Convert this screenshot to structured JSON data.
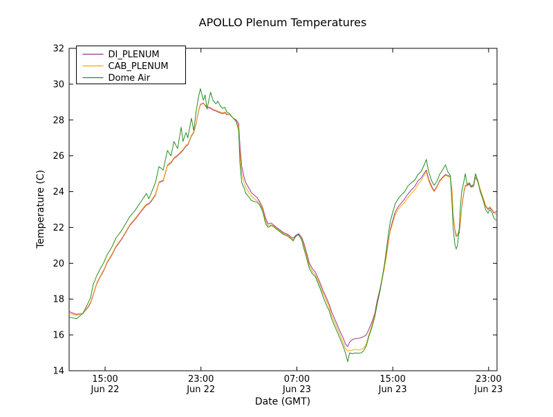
{
  "title": "APOLLO Plenum Temperatures",
  "chart_data": {
    "type": "line",
    "title": "APOLLO Plenum Temperatures",
    "xlabel": "Date (GMT)",
    "ylabel": "Temperature (C)",
    "x_unit": "hours_since_Jun22_12:00_GMT",
    "xlim": [
      0,
      35.7
    ],
    "ylim": [
      14,
      32
    ],
    "grid": false,
    "legend_position": "upper-left",
    "yticks": [
      14,
      16,
      18,
      20,
      22,
      24,
      26,
      28,
      30,
      32
    ],
    "xticks": [
      {
        "hours": 3,
        "time": "15:00",
        "date": "Jun 22"
      },
      {
        "hours": 11,
        "time": "23:00",
        "date": "Jun 22"
      },
      {
        "hours": 19,
        "time": "07:00",
        "date": "Jun 23"
      },
      {
        "hours": 27,
        "time": "15:00",
        "date": "Jun 23"
      },
      {
        "hours": 35,
        "time": "23:00",
        "date": "Jun 23"
      }
    ],
    "x": [
      0,
      0.6,
      1.15,
      1.6,
      1.8,
      2,
      2.3,
      2.6,
      2.9,
      3.15,
      3.6,
      3.9,
      4.35,
      4.75,
      5.05,
      5.5,
      5.9,
      6.25,
      6.45,
      6.65,
      6.9,
      7.2,
      7.5,
      7.85,
      8.2,
      8.5,
      8.75,
      9.05,
      9.35,
      9.5,
      9.75,
      9.9,
      10.2,
      10.4,
      10.6,
      10.8,
      10.95,
      11.2,
      11.35,
      11.5,
      11.8,
      12,
      12.25,
      12.4,
      12.6,
      12.8,
      13,
      13.15,
      13.4,
      13.55,
      13.7,
      13.95,
      14.15,
      14.25,
      14.4,
      14.6,
      14.75,
      15,
      15.2,
      15.45,
      15.7,
      15.9,
      16.15,
      16.4,
      16.6,
      16.85,
      17.05,
      17.3,
      17.6,
      17.9,
      18.15,
      18.45,
      18.7,
      18.9,
      19.15,
      19.4,
      19.6,
      19.85,
      20.05,
      20.3,
      20.55,
      20.75,
      21,
      21.2,
      21.45,
      21.7,
      21.9,
      22.15,
      22.35,
      22.6,
      22.85,
      23.05,
      23.25,
      23.4,
      23.65,
      23.9,
      24.1,
      24.35,
      24.55,
      24.8,
      25,
      25.25,
      25.5,
      25.7,
      25.95,
      26.1,
      26.3,
      26.5,
      26.65,
      26.8,
      27,
      27.2,
      27.45,
      27.7,
      28,
      28.25,
      28.55,
      28.85,
      29.1,
      29.35,
      29.6,
      29.8,
      30,
      30.25,
      30.45,
      30.7,
      30.9,
      31.15,
      31.4,
      31.6,
      31.8,
      31.95,
      32.05,
      32.2,
      32.3,
      32.4,
      32.55,
      32.65,
      32.75,
      32.95,
      33.05,
      33.2,
      33.4,
      33.55,
      33.75,
      33.9,
      34.1,
      34.3,
      34.55,
      34.75,
      34.95,
      35.1,
      35.3,
      35.45,
      35.65
    ],
    "series": [
      {
        "name": "DI_PLENUM",
        "color": "#993399",
        "values": [
          17.3,
          17.15,
          17.2,
          17.55,
          17.8,
          18.2,
          18.85,
          19.25,
          19.6,
          20,
          20.5,
          20.9,
          21.3,
          21.75,
          22.1,
          22.45,
          22.8,
          23.1,
          23.25,
          23.3,
          23.5,
          23.8,
          24.5,
          24.6,
          25.45,
          25.6,
          25.85,
          26,
          26.2,
          26.3,
          26.55,
          26.6,
          27.1,
          27.3,
          27.8,
          28.5,
          28.85,
          28.95,
          28.8,
          28.7,
          28.65,
          28.55,
          28.5,
          28.45,
          28.4,
          28.35,
          28.4,
          28.3,
          28.3,
          28.2,
          28.1,
          28,
          27.8,
          26.6,
          25.4,
          24.8,
          24.5,
          24.2,
          23.95,
          23.8,
          23.65,
          23.45,
          23.1,
          22.5,
          22.2,
          22.25,
          22.15,
          22,
          21.85,
          21.7,
          21.65,
          21.5,
          21.4,
          21.55,
          21.65,
          21.45,
          21.1,
          20.5,
          20,
          19.7,
          19.5,
          19.2,
          18.8,
          18.45,
          18.1,
          17.7,
          17.3,
          16.9,
          16.6,
          16.2,
          15.85,
          15.5,
          15.35,
          15.6,
          15.75,
          15.8,
          15.8,
          15.85,
          15.9,
          16,
          16.3,
          16.7,
          17.2,
          17.9,
          18.6,
          19.1,
          19.8,
          20.6,
          21.3,
          21.9,
          22.4,
          22.85,
          23.15,
          23.35,
          23.6,
          23.85,
          24.1,
          24.3,
          24.6,
          24.75,
          25,
          25.2,
          24.7,
          24.3,
          24.05,
          24.3,
          24.6,
          24.8,
          24.95,
          24.9,
          24.85,
          24,
          22.6,
          21.8,
          21.5,
          21.55,
          21.7,
          22.3,
          23.1,
          24,
          24.3,
          24.35,
          24.4,
          24.25,
          24.3,
          24.8,
          24.55,
          24.1,
          23.6,
          23.2,
          23,
          23.1,
          22.95,
          22.8,
          22.9
        ]
      },
      {
        "name": "CAB_PLENUM",
        "color": "#ffa500",
        "values": [
          17.2,
          17.1,
          17.2,
          17.6,
          17.85,
          18.25,
          18.9,
          19.3,
          19.65,
          20.05,
          20.55,
          20.95,
          21.35,
          21.8,
          22.15,
          22.5,
          22.85,
          23.15,
          23.3,
          23.35,
          23.55,
          23.85,
          24.55,
          24.65,
          25.5,
          25.65,
          25.9,
          26.05,
          26.25,
          26.35,
          26.6,
          26.65,
          27.15,
          27.35,
          27.85,
          28.55,
          28.9,
          28.9,
          28.85,
          28.75,
          28.7,
          28.6,
          28.55,
          28.5,
          28.45,
          28.4,
          28.45,
          28.35,
          28.3,
          28.2,
          28.1,
          27.95,
          27.6,
          26.2,
          25,
          24.5,
          24.2,
          23.95,
          23.75,
          23.6,
          23.5,
          23.35,
          23,
          22.35,
          22.1,
          22.15,
          22.1,
          21.95,
          21.8,
          21.65,
          21.6,
          21.45,
          21.3,
          21.5,
          21.6,
          21.35,
          20.95,
          20.35,
          19.85,
          19.55,
          19.35,
          19.05,
          18.65,
          18.3,
          17.95,
          17.55,
          17.1,
          16.7,
          16.4,
          16,
          15.6,
          15.25,
          15.1,
          15.15,
          15.15,
          15.2,
          15.15,
          15.2,
          15.25,
          15.5,
          16,
          16.5,
          17.1,
          17.75,
          18.5,
          19,
          19.7,
          20.5,
          21.2,
          21.8,
          22.25,
          22.7,
          23,
          23.2,
          23.4,
          23.65,
          23.9,
          24.1,
          24.4,
          24.6,
          24.9,
          25.1,
          24.6,
          24.2,
          24,
          24.25,
          24.55,
          24.75,
          24.9,
          24.85,
          24.8,
          24.05,
          22.7,
          21.9,
          21.6,
          21.65,
          21.8,
          22.4,
          23.2,
          24.1,
          24.35,
          24.4,
          24.45,
          24.3,
          24.35,
          24.85,
          24.6,
          24.15,
          23.65,
          23.25,
          23.05,
          23.15,
          23,
          22.85,
          22.7
        ]
      },
      {
        "name": "Dome Air",
        "color": "#228b22",
        "values": [
          17,
          16.9,
          17.2,
          17.8,
          18.1,
          18.8,
          19.3,
          19.7,
          20.05,
          20.45,
          20.95,
          21.4,
          21.8,
          22.25,
          22.6,
          22.95,
          23.35,
          23.7,
          23.9,
          23.6,
          24,
          24.5,
          25.4,
          25.2,
          26.3,
          26,
          26.8,
          26.4,
          27.6,
          26.8,
          27.3,
          27,
          28.1,
          27.4,
          28.5,
          29.3,
          29.75,
          29.1,
          29.4,
          28.6,
          29.55,
          29.1,
          28.9,
          29.05,
          28.8,
          28.65,
          28.7,
          28.45,
          28.35,
          28.2,
          28.1,
          27.9,
          27.4,
          25.6,
          24.5,
          24.2,
          23.9,
          23.7,
          23.5,
          23.45,
          23.4,
          23.25,
          22.9,
          22.2,
          22,
          22.1,
          22.05,
          21.9,
          21.75,
          21.6,
          21.55,
          21.4,
          21.25,
          21.5,
          21.6,
          21.3,
          20.8,
          20.2,
          19.7,
          19.4,
          19.25,
          18.9,
          18.5,
          18.1,
          17.7,
          17.35,
          16.9,
          16.5,
          16.2,
          15.8,
          15.4,
          15,
          14.5,
          15,
          14.95,
          15,
          14.97,
          15,
          15.1,
          15.4,
          15.9,
          16.4,
          17,
          17.7,
          18.5,
          19.1,
          19.9,
          20.9,
          21.7,
          22.35,
          22.85,
          23.3,
          23.6,
          23.8,
          24,
          24.3,
          24.5,
          24.65,
          24.95,
          25.1,
          25.45,
          25.8,
          25.1,
          24.6,
          24.35,
          24.6,
          24.95,
          25.2,
          25.5,
          25.1,
          24.9,
          23.3,
          21.9,
          21,
          20.8,
          21,
          22,
          23.2,
          24,
          24.6,
          25,
          24.4,
          24.5,
          24.3,
          24.4,
          25,
          24.6,
          24,
          23.5,
          23,
          22.8,
          23,
          22.8,
          22.5,
          22.4
        ]
      }
    ]
  }
}
